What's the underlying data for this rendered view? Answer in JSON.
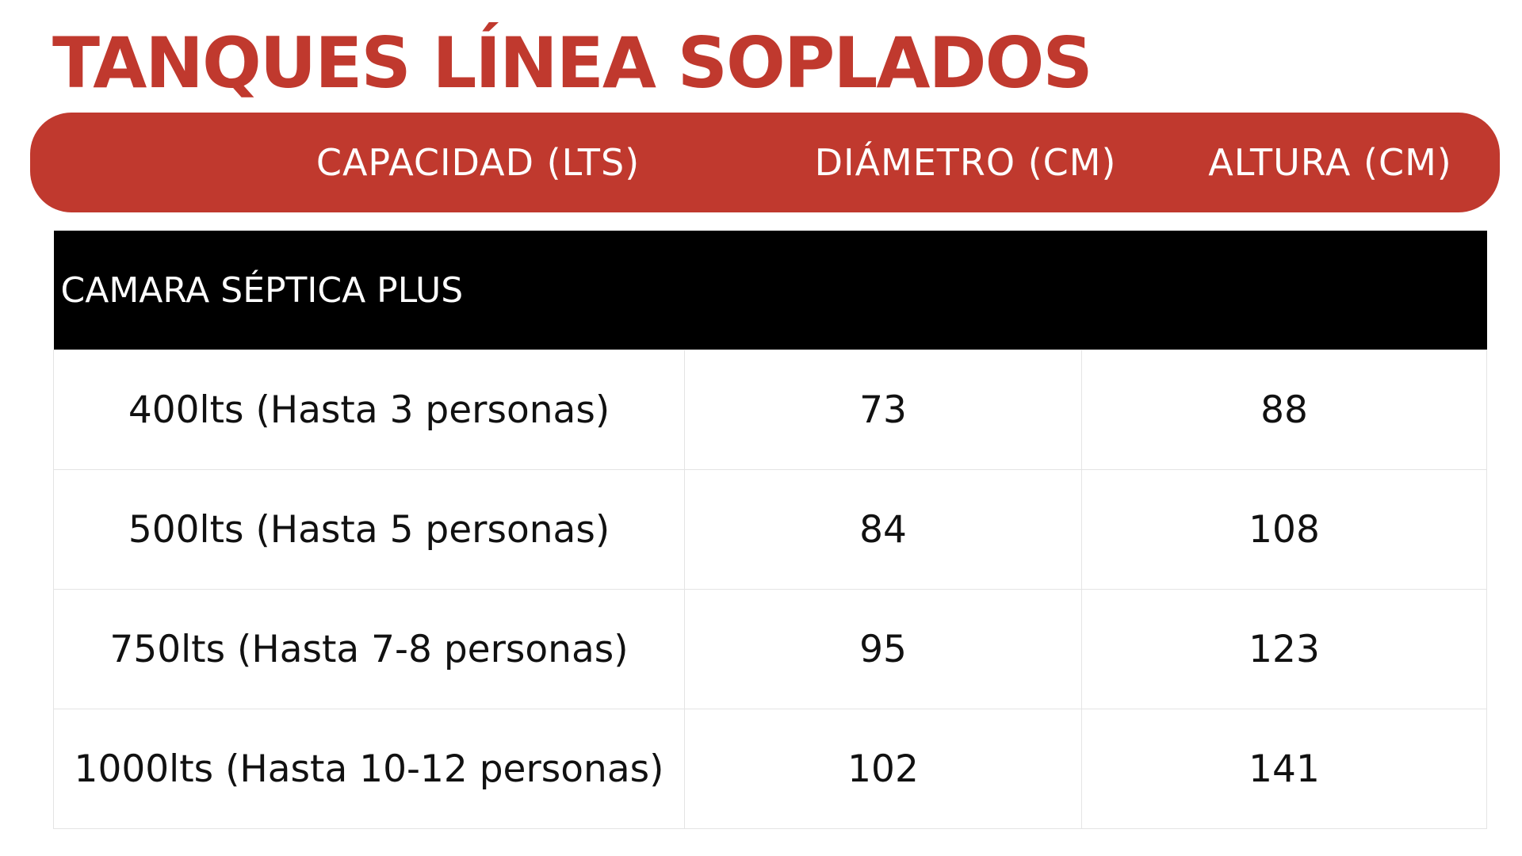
{
  "title": "TANQUES LÍNEA SOPLADOS",
  "header": {
    "columns": [
      "CAPACIDAD (LTS)",
      "DIÁMETRO (CM)",
      "ALTURA (CM)"
    ]
  },
  "table": {
    "section_title": "CAMARA SÉPTICA PLUS",
    "rows": [
      {
        "capacity": "400lts (Hasta 3 personas)",
        "diameter": "73",
        "height": "88"
      },
      {
        "capacity": "500lts (Hasta 5 personas)",
        "diameter": "84",
        "height": "108"
      },
      {
        "capacity": "750lts (Hasta 7-8 personas)",
        "diameter": "95",
        "height": "123"
      },
      {
        "capacity": "1000lts (Hasta 10-12 personas)",
        "diameter": "102",
        "height": "141"
      }
    ]
  },
  "colors": {
    "accent": "#c0392e",
    "section_bg": "#000000",
    "text": "#111111",
    "grid": "#e4e4e4"
  }
}
